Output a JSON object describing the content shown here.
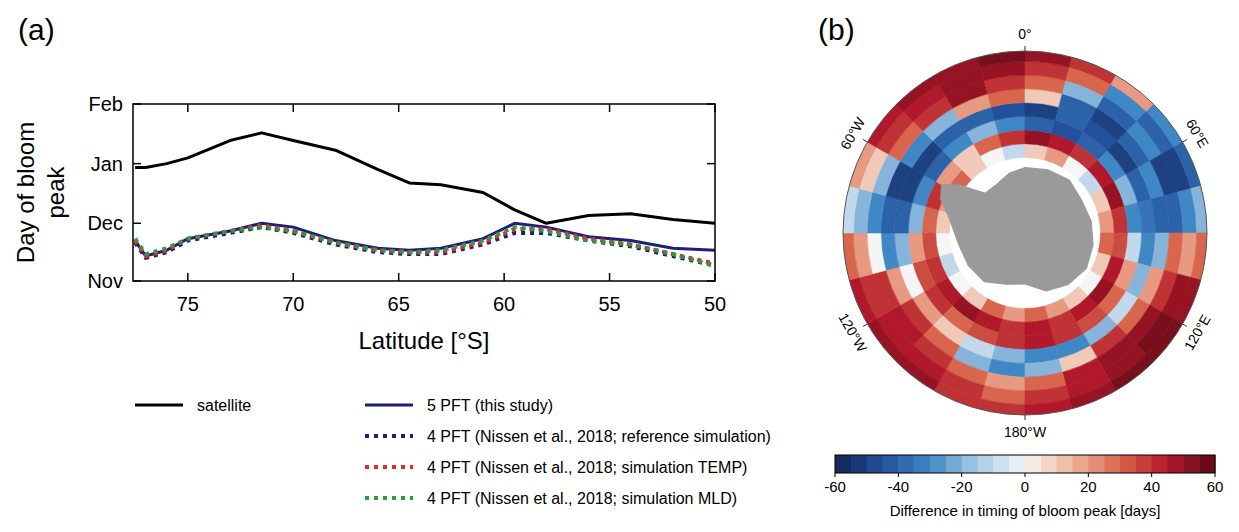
{
  "chart_data": [
    {
      "type": "line",
      "panel_label": "(a)",
      "xlabel": "Latitude [°S]",
      "ylabel": "Day of bloom peak",
      "x": [
        77.5,
        77,
        76,
        75,
        73,
        71.5,
        70,
        68,
        66,
        64.5,
        63,
        61,
        59.5,
        58,
        56,
        54,
        52,
        50
      ],
      "xlim": [
        77.6,
        50
      ],
      "xticks": [
        75,
        70,
        65,
        60,
        55,
        50
      ],
      "ylim": [
        0,
        92
      ],
      "yticks": [
        {
          "value": 0,
          "label": "Nov"
        },
        {
          "value": 30,
          "label": "Dec"
        },
        {
          "value": 61,
          "label": "Jan"
        },
        {
          "value": 92,
          "label": "Feb"
        }
      ],
      "legend": "bottom",
      "series": [
        {
          "name": "satellite",
          "color": "#000000",
          "line_style": "solid",
          "values": [
            59,
            59,
            61,
            64,
            73,
            77,
            73,
            68,
            58,
            51,
            50,
            46,
            37,
            30,
            34,
            35,
            32,
            30
          ]
        },
        {
          "name": "5 PFT (this study)",
          "color": "#1f1f7a",
          "line_style": "solid",
          "values": [
            21,
            13,
            16,
            22,
            26,
            30,
            28,
            21,
            17,
            16,
            17,
            22,
            30,
            28,
            23,
            21,
            17,
            16
          ]
        },
        {
          "name": "4 PFT (Nissen et al., 2018; reference simulation)",
          "color": "#1f1f7a",
          "line_style": "dotted",
          "values": [
            20,
            12,
            15,
            21,
            25,
            28,
            25,
            19,
            15,
            14,
            14,
            19,
            25,
            25,
            21,
            18,
            13,
            8
          ]
        },
        {
          "name": "4 PFT (Nissen et al., 2018; simulation TEMP)",
          "color": "#e8262a",
          "line_style": "dotted",
          "values": [
            21,
            13,
            16,
            22,
            26,
            29,
            26,
            20,
            16,
            15,
            15,
            20,
            27,
            27,
            22,
            19,
            14,
            9
          ]
        },
        {
          "name": "4 PFT (Nissen et al., 2018; simulation MLD)",
          "color": "#2a9d3a",
          "line_style": "dotted",
          "values": [
            22,
            14,
            17,
            22,
            26,
            28,
            26,
            20,
            16,
            15,
            16,
            21,
            28,
            26,
            21,
            19,
            14,
            8
          ]
        }
      ]
    },
    {
      "type": "heatmap",
      "panel_label": "(b)",
      "xlim": [
        -180,
        180
      ],
      "ylim": [
        -90,
        -37
      ],
      "x": [
        -180,
        -165,
        -150,
        -135,
        -120,
        -105,
        -90,
        -75,
        -60,
        -45,
        -30,
        -15,
        0,
        15,
        30,
        45,
        60,
        75,
        90,
        105,
        120,
        135,
        150,
        165,
        180
      ],
      "y": [
        -68,
        -64,
        -60,
        -56,
        -52,
        -48,
        -44,
        -40,
        -37
      ],
      "xticks": [
        {
          "value": 0,
          "label": "0°"
        },
        {
          "value": 60,
          "label": "60°E"
        },
        {
          "value": 120,
          "label": "120°E"
        },
        {
          "value": 180,
          "label": "180°W"
        },
        {
          "value": -120,
          "label": "120°W"
        },
        {
          "value": -60,
          "label": "60°W"
        }
      ],
      "cells": [
        [
          20,
          30,
          10,
          0,
          -10,
          0,
          10,
          20,
          30,
          10,
          0,
          -10,
          10,
          20,
          0,
          -10,
          10,
          20,
          30,
          10,
          0,
          10,
          20,
          30
        ],
        [
          40,
          45,
          50,
          45,
          40,
          35,
          30,
          40,
          20,
          10,
          30,
          40,
          50,
          45,
          40,
          45,
          50,
          40,
          35,
          45,
          50,
          45,
          40,
          45
        ],
        [
          40,
          35,
          30,
          40,
          35,
          20,
          -20,
          -30,
          -40,
          -30,
          -20,
          -30,
          -40,
          -45,
          -40,
          -30,
          -20,
          -30,
          -10,
          20,
          30,
          35,
          40,
          45
        ],
        [
          -20,
          -10,
          10,
          20,
          0,
          -20,
          -40,
          -50,
          -50,
          -40,
          -40,
          -45,
          -50,
          -40,
          -45,
          -50,
          -40,
          -35,
          -30,
          -20,
          -10,
          -20,
          -30,
          -30
        ],
        [
          -30,
          -20,
          30,
          40,
          20,
          -30,
          -40,
          -50,
          -30,
          -20,
          20,
          30,
          10,
          -40,
          -50,
          -40,
          -30,
          -40,
          -20,
          20,
          30,
          40,
          10,
          -20
        ],
        [
          20,
          30,
          40,
          45,
          40,
          0,
          -30,
          -20,
          30,
          40,
          50,
          40,
          30,
          -20,
          -40,
          -30,
          -50,
          -40,
          30,
          40,
          50,
          50,
          45,
          30
        ],
        [
          30,
          40,
          45,
          45,
          40,
          20,
          -20,
          10,
          40,
          45,
          50,
          50,
          40,
          30,
          -30,
          -40,
          -50,
          -30,
          20,
          50,
          55,
          50,
          45,
          40
        ],
        [
          40,
          40,
          50,
          50,
          45,
          30,
          -10,
          20,
          45,
          50,
          50,
          55,
          50,
          40,
          20,
          -30,
          -40,
          -20,
          30,
          50,
          55,
          55,
          50,
          45
        ]
      ],
      "color_range": [
        -60,
        60
      ],
      "color_ticks": [
        -60,
        -40,
        -20,
        0,
        20,
        40,
        60
      ],
      "color_label": "Difference in timing of bloom peak [days]"
    }
  ]
}
